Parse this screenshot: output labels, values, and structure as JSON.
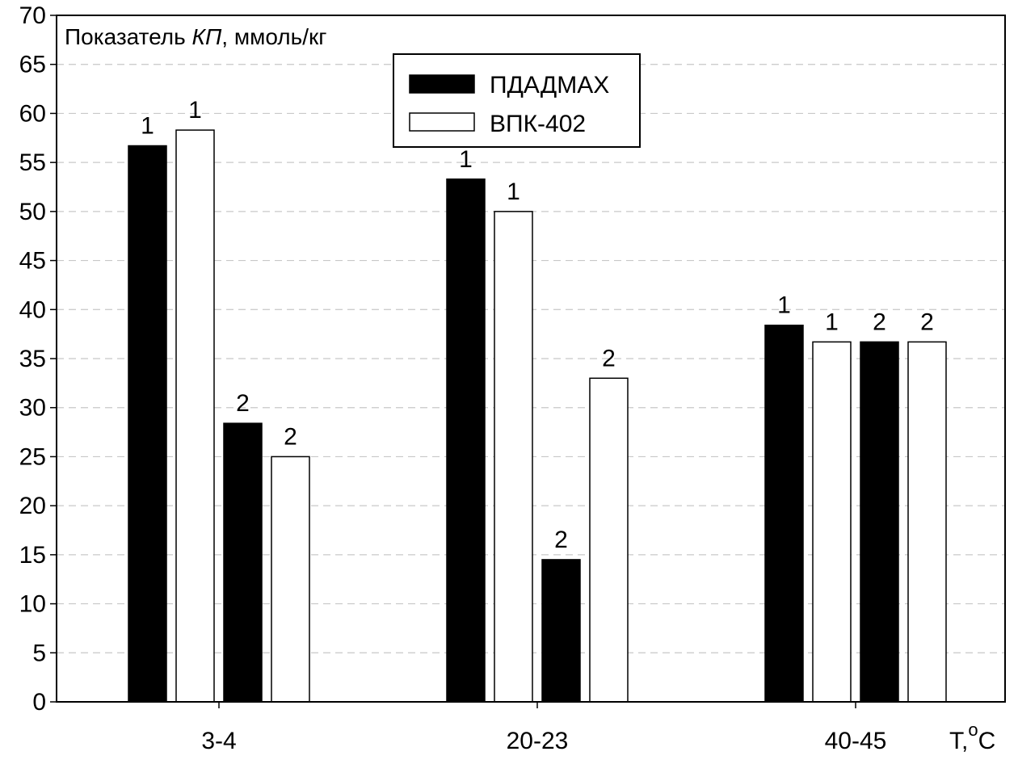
{
  "chart_data": {
    "type": "bar",
    "ylabel_prefix": "Показатель ",
    "ylabel_italic": "КП",
    "ylabel_suffix": ", ммоль/кг",
    "xlabel_main": "T,",
    "xlabel_sup": "o",
    "xlabel_unit": "C",
    "ylim": [
      0,
      70
    ],
    "yticks": [
      "0",
      "5",
      "10",
      "15",
      "20",
      "25",
      "30",
      "35",
      "40",
      "45",
      "50",
      "55",
      "60",
      "65",
      "70"
    ],
    "grid": "horizontal dashed",
    "legend_position": "top-center",
    "legend": [
      {
        "name": "ПДАДМАХ",
        "color": "#000000"
      },
      {
        "name": "ВПК-402",
        "color": "#ffffff"
      }
    ],
    "categories": [
      "3-4",
      "20-23",
      "40-45"
    ],
    "groups": [
      {
        "category": "3-4",
        "bars": [
          {
            "series": "ПДАДМАХ",
            "label": "1",
            "value": 56.7
          },
          {
            "series": "ВПК-402",
            "label": "1",
            "value": 58.3
          },
          {
            "series": "ПДАДМАХ",
            "label": "2",
            "value": 28.4
          },
          {
            "series": "ВПК-402",
            "label": "2",
            "value": 25.0
          }
        ]
      },
      {
        "category": "20-23",
        "bars": [
          {
            "series": "ПДАДМАХ",
            "label": "1",
            "value": 53.3
          },
          {
            "series": "ВПК-402",
            "label": "1",
            "value": 50.0
          },
          {
            "series": "ПДАДМАХ",
            "label": "2",
            "value": 14.5
          },
          {
            "series": "ВПК-402",
            "label": "2",
            "value": 33.0
          }
        ]
      },
      {
        "category": "40-45",
        "bars": [
          {
            "series": "ПДАДМАХ",
            "label": "1",
            "value": 38.4
          },
          {
            "series": "ВПК-402",
            "label": "1",
            "value": 36.7
          },
          {
            "series": "ПДАДМАХ",
            "label": "2",
            "value": 36.7
          },
          {
            "series": "ВПК-402",
            "label": "2",
            "value": 36.7
          }
        ]
      }
    ]
  }
}
